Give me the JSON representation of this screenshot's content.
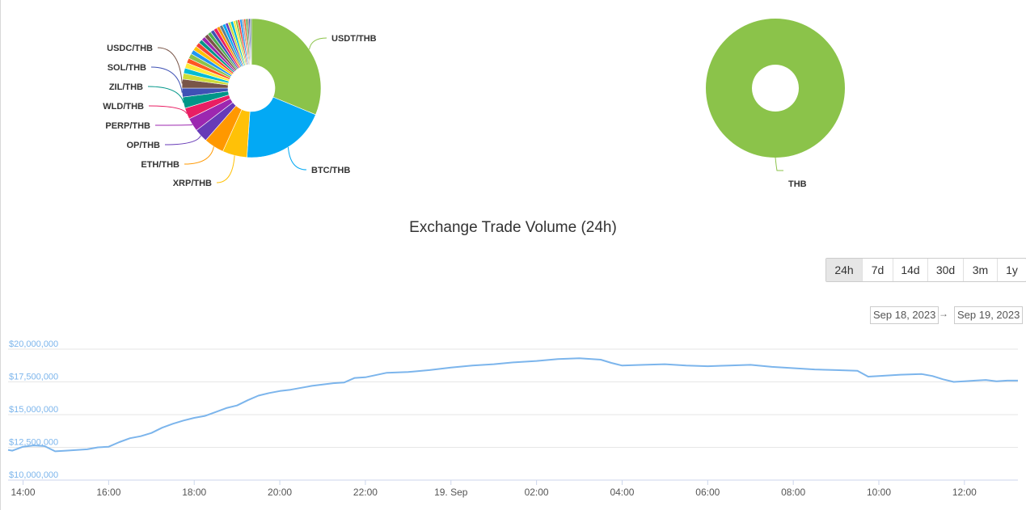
{
  "pie_left": {
    "labels": {
      "usdt": "USDT/THB",
      "btc": "BTC/THB",
      "xrp": "XRP/THB",
      "eth": "ETH/THB",
      "op": "OP/THB",
      "perp": "PERP/THB",
      "wld": "WLD/THB",
      "zil": "ZIL/THB",
      "sol": "SOL/THB",
      "usdc": "USDC/THB"
    }
  },
  "pie_right": {
    "labels": {
      "thb": "THB"
    }
  },
  "colors": {
    "line": "#7cb5ec",
    "usdt": "#8bc34a",
    "btc": "#03a9f4",
    "xrp": "#ffc107",
    "eth": "#ff9800",
    "op": "#673ab7",
    "perp": "#9c27b0",
    "wld": "#e91e63",
    "zil": "#009688",
    "sol": "#3f51b5",
    "usdc": "#795548"
  },
  "title": "Exchange Trade Volume (24h)",
  "range_selector": {
    "buttons": [
      "24h",
      "7d",
      "14d",
      "30d",
      "3m",
      "1y"
    ],
    "active": "24h",
    "from": "Sep 18, 2023",
    "arrow": "→",
    "to": "Sep 19, 2023"
  },
  "chart_data": [
    {
      "type": "pie",
      "categories": [
        "USDT/THB",
        "BTC/THB",
        "XRP/THB",
        "ETH/THB",
        "OP/THB",
        "PERP/THB",
        "WLD/THB",
        "ZIL/THB",
        "SOL/THB",
        "USDC/THB"
      ],
      "values": [
        30,
        19,
        5.5,
        4.5,
        3,
        3,
        2.5,
        2.5,
        2,
        2
      ],
      "other_slices": [
        1.3,
        1.2,
        1.2,
        1.1,
        1.1,
        1.0,
        1.0,
        1.0,
        0.9,
        0.9,
        0.9,
        0.8,
        0.8,
        0.8,
        0.7,
        0.7,
        0.7,
        0.6,
        0.6,
        0.6,
        0.5,
        0.5,
        0.5,
        0.5,
        0.4,
        0.4,
        0.4,
        0.3,
        0.3,
        0.3
      ],
      "other_colors": [
        "#cddc39",
        "#00bcd4",
        "#ffeb3b",
        "#ff5722",
        "#8bc34a",
        "#2196f3",
        "#ffc107",
        "#f44336",
        "#009688",
        "#9c27b0",
        "#795548",
        "#4caf50",
        "#3f51b5",
        "#e91e63",
        "#ff9800",
        "#607d8b",
        "#03a9f4",
        "#673ab7",
        "#cddc39",
        "#00bcd4",
        "#ffeb3b",
        "#8bc34a",
        "#f44336",
        "#2196f3",
        "#9e9e9e",
        "#ff5722",
        "#4caf50",
        "#795548",
        "#3f51b5",
        "#607d8b"
      ]
    },
    {
      "type": "pie",
      "categories": [
        "THB"
      ],
      "values": [
        100
      ]
    },
    {
      "type": "line",
      "title": "Exchange Trade Volume (24h)",
      "ylim": [
        10000000,
        20000000
      ],
      "y_ticks": [
        "$10,000,000",
        "$12,500,000",
        "$15,000,000",
        "$17,500,000",
        "$20,000,000"
      ],
      "x_ticks": [
        "14:00",
        "16:00",
        "18:00",
        "20:00",
        "22:00",
        "19. Sep",
        "02:00",
        "04:00",
        "06:00",
        "08:00",
        "10:00",
        "12:00"
      ],
      "x_hours": [
        13.5,
        13.75,
        14,
        14.25,
        14.5,
        14.75,
        15,
        15.25,
        15.5,
        15.75,
        16,
        16.25,
        16.5,
        16.75,
        17,
        17.25,
        17.5,
        17.75,
        18,
        18.25,
        18.5,
        18.75,
        19,
        19.25,
        19.5,
        19.75,
        20,
        20.25,
        20.5,
        20.75,
        21,
        21.25,
        21.5,
        21.75,
        22,
        22.5,
        23,
        23.5,
        24,
        24.5,
        25,
        25.5,
        26,
        26.5,
        27,
        27.5,
        27.75,
        28,
        28.5,
        29,
        29.5,
        30,
        30.5,
        31,
        31.5,
        32,
        32.5,
        33,
        33.5,
        33.75,
        34,
        34.5,
        35,
        35.25,
        35.5,
        35.75,
        36,
        36.25,
        36.5,
        36.75,
        37,
        37.25
      ],
      "values": [
        12300000,
        12250000,
        12550000,
        12650000,
        12600000,
        12200000,
        12250000,
        12300000,
        12350000,
        12500000,
        12550000,
        12900000,
        13200000,
        13350000,
        13600000,
        14000000,
        14300000,
        14550000,
        14750000,
        14900000,
        15200000,
        15500000,
        15700000,
        16100000,
        16450000,
        16650000,
        16800000,
        16900000,
        17050000,
        17200000,
        17300000,
        17400000,
        17450000,
        17800000,
        17850000,
        18200000,
        18250000,
        18400000,
        18600000,
        18750000,
        18850000,
        19000000,
        19100000,
        19250000,
        19300000,
        19200000,
        18950000,
        18750000,
        18800000,
        18850000,
        18750000,
        18700000,
        18750000,
        18800000,
        18650000,
        18550000,
        18450000,
        18400000,
        18350000,
        17900000,
        17950000,
        18050000,
        18100000,
        17950000,
        17700000,
        17500000,
        17550000,
        17600000,
        17650000,
        17550000,
        17600000,
        17600000
      ]
    }
  ]
}
